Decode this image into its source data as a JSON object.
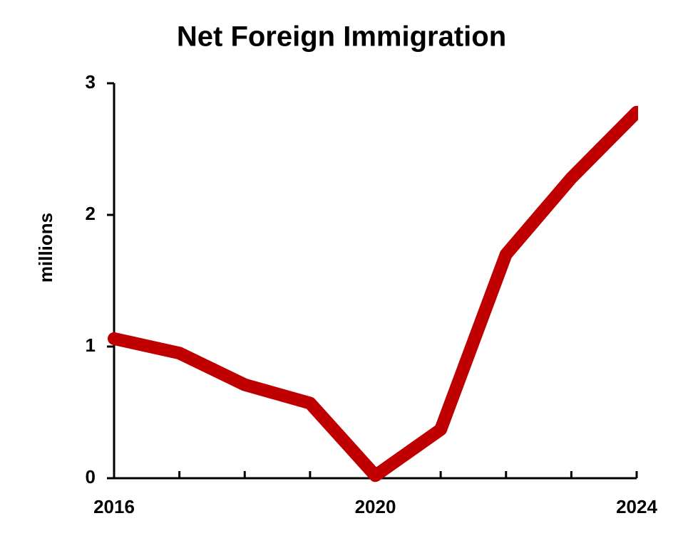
{
  "chart_data": {
    "type": "line",
    "title": "Net Foreign Immigration",
    "y_label": "millions",
    "x": [
      2016,
      2017,
      2018,
      2019,
      2020,
      2021,
      2022,
      2023,
      2024
    ],
    "series": [
      {
        "name": "Net Foreign Immigration",
        "color": "#c00000",
        "values": [
          1.06,
          0.95,
          0.71,
          0.57,
          0.02,
          0.37,
          1.7,
          2.28,
          2.78
        ]
      }
    ],
    "xlim": [
      2016,
      2024
    ],
    "xticks": [
      2016,
      2020,
      2024
    ],
    "xminorticks": [
      2017,
      2018,
      2019,
      2021,
      2022,
      2023
    ],
    "ylim": [
      0,
      3
    ],
    "yticks": [
      0,
      1,
      2,
      3
    ],
    "grid": false,
    "legend": false
  }
}
